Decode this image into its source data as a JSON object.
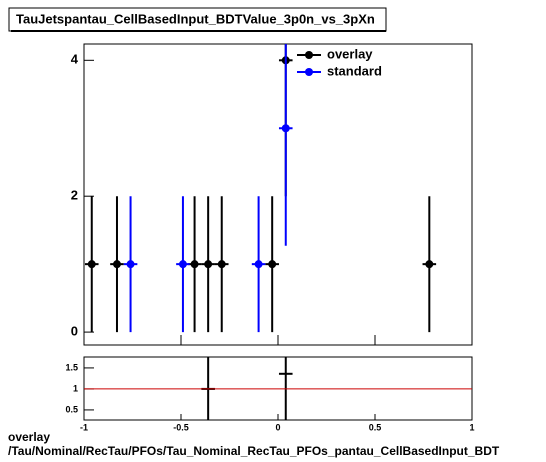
{
  "chart_data": [
    {
      "type": "scatter",
      "title": "TauJetspantau_CellBasedInput_BDTValue_3p0n_vs_3pXn",
      "xlim": [
        -1,
        1
      ],
      "ylim": [
        -0.19,
        4.24
      ],
      "xticks": [
        -1,
        -0.5,
        0,
        0.5,
        1
      ],
      "yticks": [
        0,
        2,
        4
      ],
      "x_error": 0.035,
      "legend": "top-right",
      "series": [
        {
          "name": "overlay",
          "color": "#000000",
          "x": [
            -0.96,
            -0.83,
            -0.43,
            -0.36,
            -0.29,
            -0.03,
            0.04,
            0.78
          ],
          "values": [
            1,
            1,
            1,
            1,
            1,
            1,
            4,
            1
          ],
          "errors": [
            1,
            1,
            1,
            1,
            1,
            1,
            2,
            1
          ]
        },
        {
          "name": "standard",
          "color": "#0000ff",
          "x": [
            -0.76,
            -0.49,
            -0.1,
            0.04
          ],
          "values": [
            1,
            1,
            1,
            3
          ],
          "errors": [
            1,
            1,
            1,
            1.73
          ]
        }
      ]
    },
    {
      "type": "scatter",
      "xlim": [
        -1,
        1
      ],
      "ylim": [
        0.26,
        1.76
      ],
      "xticks": [
        -1,
        -0.5,
        0,
        0.5,
        1
      ],
      "yticks": [
        0.5,
        1,
        1.5
      ],
      "x_error": 0.035,
      "reference": 1,
      "reference_color": "#cc0000",
      "series": [
        {
          "color": "#000000",
          "x": [
            -0.36,
            0.04
          ],
          "values": [
            1,
            1.36
          ],
          "errors": [
            1.4,
            1.6
          ]
        }
      ]
    }
  ],
  "footer": {
    "line1": "overlay",
    "line2": "/Tau/Nominal/RecTau/PFOs/Tau_Nominal_RecTau_PFOs_pantau_CellBasedInput_BDT"
  }
}
